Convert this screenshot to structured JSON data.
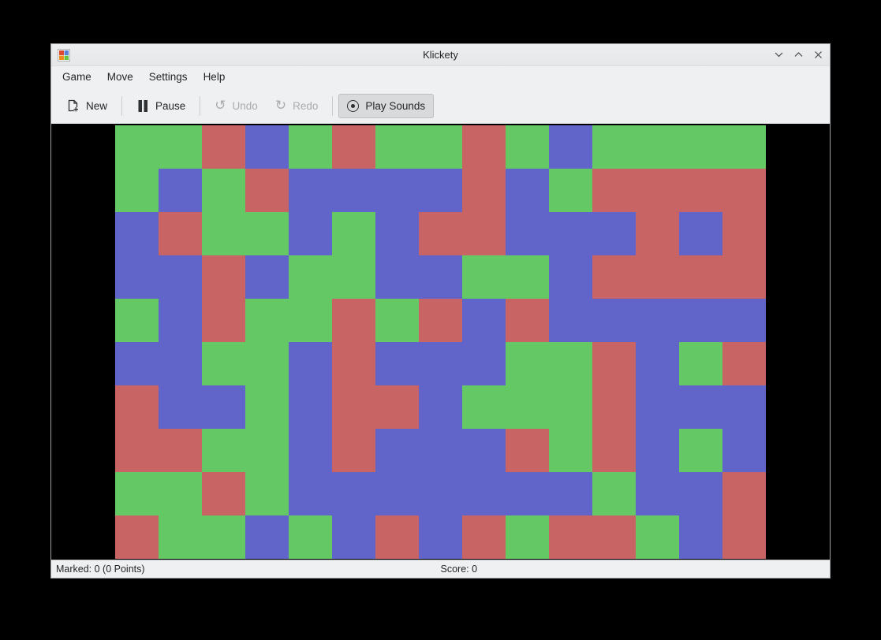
{
  "window": {
    "title": "Klickety"
  },
  "menubar": {
    "items": [
      {
        "label": "Game"
      },
      {
        "label": "Move"
      },
      {
        "label": "Settings"
      },
      {
        "label": "Help"
      }
    ]
  },
  "toolbar": {
    "new_label": "New",
    "pause_label": "Pause",
    "undo_label": "Undo",
    "redo_label": "Redo",
    "play_sounds_label": "Play Sounds",
    "undo_glyph": "↺",
    "redo_glyph": "↻"
  },
  "statusbar": {
    "marked": "Marked: 0 (0 Points)",
    "score": "Score: 0"
  },
  "board": {
    "columns": 15,
    "rows": 10,
    "cell_size": 55,
    "colors": {
      "G": "#64c864",
      "R": "#c86464",
      "B": "#6164c8"
    },
    "grid": [
      "GGRBGRGGRGBGGGG",
      "GBGRBBBBRBGRRRR",
      "BRGGBGBRRBBBRBR",
      "BBRBGGBBGGBRRRR",
      "GBRGGRGRBRBBBBB",
      "BBGGBRBBBGGRBGR",
      "RBBGBRRBGGGRBBB",
      "RRGGBRBBBRGRBGB",
      "GGRGBBBBBBBGBBR",
      "RGGBGBRBRGRRGBR"
    ]
  }
}
